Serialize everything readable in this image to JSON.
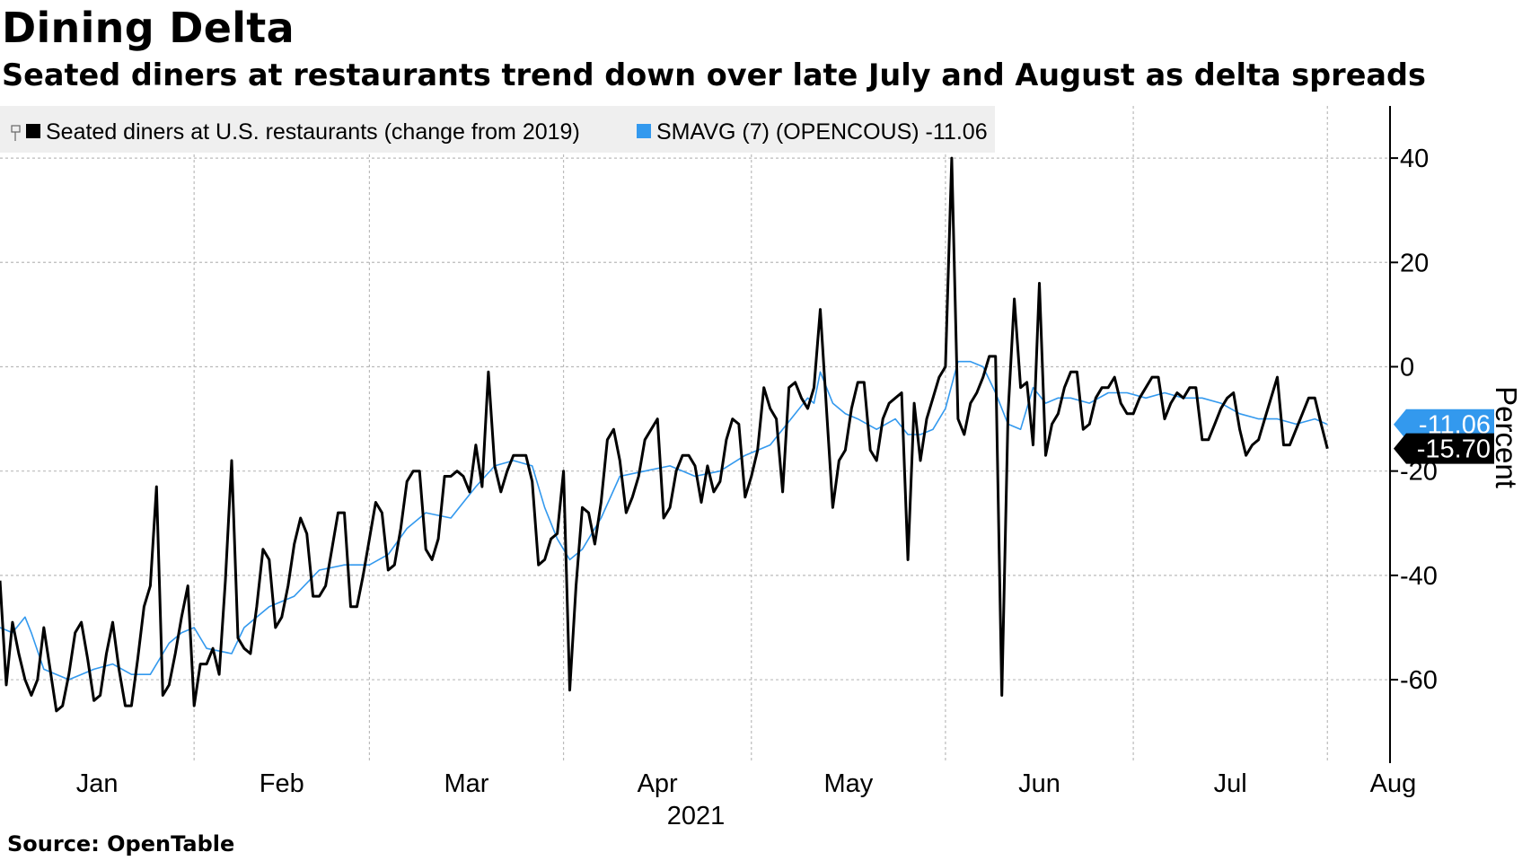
{
  "title": "Dining Delta",
  "subtitle": "Seated diners at restaurants trend down over late July and August as delta spreads",
  "source": "Source: OpenTable",
  "chart_data": {
    "type": "line",
    "title": "Dining Delta",
    "subtitle": "Seated diners at restaurants trend down over late July and August as delta spreads",
    "xlabel": "2021",
    "ylabel": "Percent",
    "ylim": [
      -76,
      50
    ],
    "y_ticks": [
      40,
      20,
      0,
      -20,
      -40,
      -60
    ],
    "y_tick_labels": [
      "40",
      "20",
      "0",
      "-20",
      "-40",
      "-60"
    ],
    "x_range_days": [
      1,
      223
    ],
    "month_ticks": [
      {
        "label": "Jan",
        "day": 1
      },
      {
        "label": "Feb",
        "day": 32
      },
      {
        "label": "Mar",
        "day": 60
      },
      {
        "label": "Apr",
        "day": 91
      },
      {
        "label": "May",
        "day": 121
      },
      {
        "label": "Jun",
        "day": 152
      },
      {
        "label": "Jul",
        "day": 182
      },
      {
        "label": "Aug",
        "day": 213
      }
    ],
    "grid": true,
    "legend_position": "top-left",
    "series": [
      {
        "name": "Seated diners at U.S. restaurants (change from 2019)",
        "color": "#000000",
        "last_value": "-15.70",
        "points": [
          [
            1,
            -41
          ],
          [
            2,
            -61
          ],
          [
            3,
            -49
          ],
          [
            4,
            -55
          ],
          [
            5,
            -60
          ],
          [
            6,
            -63
          ],
          [
            7,
            -60
          ],
          [
            8,
            -50
          ],
          [
            9,
            -58
          ],
          [
            10,
            -66
          ],
          [
            11,
            -65
          ],
          [
            12,
            -59
          ],
          [
            13,
            -51
          ],
          [
            14,
            -49
          ],
          [
            15,
            -56
          ],
          [
            16,
            -64
          ],
          [
            17,
            -63
          ],
          [
            18,
            -55
          ],
          [
            19,
            -49
          ],
          [
            20,
            -58
          ],
          [
            21,
            -65
          ],
          [
            22,
            -65
          ],
          [
            23,
            -56
          ],
          [
            24,
            -46
          ],
          [
            25,
            -42
          ],
          [
            26,
            -23
          ],
          [
            27,
            -63
          ],
          [
            28,
            -61
          ],
          [
            29,
            -55
          ],
          [
            30,
            -48
          ],
          [
            31,
            -42
          ],
          [
            32,
            -65
          ],
          [
            33,
            -57
          ],
          [
            34,
            -57
          ],
          [
            35,
            -54
          ],
          [
            36,
            -59
          ],
          [
            37,
            -41
          ],
          [
            38,
            -18
          ],
          [
            39,
            -52
          ],
          [
            40,
            -54
          ],
          [
            41,
            -55
          ],
          [
            42,
            -46
          ],
          [
            43,
            -35
          ],
          [
            44,
            -37
          ],
          [
            45,
            -50
          ],
          [
            46,
            -48
          ],
          [
            47,
            -42
          ],
          [
            48,
            -34
          ],
          [
            49,
            -29
          ],
          [
            50,
            -32
          ],
          [
            51,
            -44
          ],
          [
            52,
            -44
          ],
          [
            53,
            -42
          ],
          [
            54,
            -35
          ],
          [
            55,
            -28
          ],
          [
            56,
            -28
          ],
          [
            57,
            -46
          ],
          [
            58,
            -46
          ],
          [
            59,
            -40
          ],
          [
            60,
            -33
          ],
          [
            61,
            -26
          ],
          [
            62,
            -28
          ],
          [
            63,
            -39
          ],
          [
            64,
            -38
          ],
          [
            65,
            -31
          ],
          [
            66,
            -22
          ],
          [
            67,
            -20
          ],
          [
            68,
            -20
          ],
          [
            69,
            -35
          ],
          [
            70,
            -37
          ],
          [
            71,
            -33
          ],
          [
            72,
            -21
          ],
          [
            73,
            -21
          ],
          [
            74,
            -20
          ],
          [
            75,
            -21
          ],
          [
            76,
            -24
          ],
          [
            77,
            -15
          ],
          [
            78,
            -23
          ],
          [
            79,
            -1
          ],
          [
            80,
            -19
          ],
          [
            81,
            -24
          ],
          [
            82,
            -20
          ],
          [
            83,
            -17
          ],
          [
            84,
            -17
          ],
          [
            85,
            -17
          ],
          [
            86,
            -22
          ],
          [
            87,
            -38
          ],
          [
            88,
            -37
          ],
          [
            89,
            -33
          ],
          [
            90,
            -32
          ],
          [
            91,
            -20
          ],
          [
            92,
            -62
          ],
          [
            93,
            -42
          ],
          [
            94,
            -27
          ],
          [
            95,
            -28
          ],
          [
            96,
            -34
          ],
          [
            97,
            -26
          ],
          [
            98,
            -14
          ],
          [
            99,
            -12
          ],
          [
            100,
            -18
          ],
          [
            101,
            -28
          ],
          [
            102,
            -25
          ],
          [
            103,
            -21
          ],
          [
            104,
            -14
          ],
          [
            105,
            -12
          ],
          [
            106,
            -10
          ],
          [
            107,
            -29
          ],
          [
            108,
            -27
          ],
          [
            109,
            -20
          ],
          [
            110,
            -17
          ],
          [
            111,
            -17
          ],
          [
            112,
            -19
          ],
          [
            113,
            -26
          ],
          [
            114,
            -19
          ],
          [
            115,
            -24
          ],
          [
            116,
            -22
          ],
          [
            117,
            -14
          ],
          [
            118,
            -10
          ],
          [
            119,
            -11
          ],
          [
            120,
            -25
          ],
          [
            121,
            -21
          ],
          [
            122,
            -16
          ],
          [
            123,
            -4
          ],
          [
            124,
            -8
          ],
          [
            125,
            -10
          ],
          [
            126,
            -24
          ],
          [
            127,
            -4
          ],
          [
            128,
            -3
          ],
          [
            129,
            -6
          ],
          [
            130,
            -8
          ],
          [
            131,
            -4
          ],
          [
            132,
            11
          ],
          [
            133,
            -8
          ],
          [
            134,
            -27
          ],
          [
            135,
            -18
          ],
          [
            136,
            -16
          ],
          [
            137,
            -8
          ],
          [
            138,
            -3
          ],
          [
            139,
            -3
          ],
          [
            140,
            -16
          ],
          [
            141,
            -18
          ],
          [
            142,
            -10
          ],
          [
            143,
            -7
          ],
          [
            144,
            -6
          ],
          [
            145,
            -5
          ],
          [
            146,
            -37
          ],
          [
            147,
            -7
          ],
          [
            148,
            -18
          ],
          [
            149,
            -10
          ],
          [
            150,
            -6
          ],
          [
            151,
            -2
          ],
          [
            152,
            0
          ],
          [
            153,
            40
          ],
          [
            154,
            -10
          ],
          [
            155,
            -13
          ],
          [
            156,
            -7
          ],
          [
            157,
            -5
          ],
          [
            158,
            -2
          ],
          [
            159,
            2
          ],
          [
            160,
            2
          ],
          [
            161,
            -63
          ],
          [
            162,
            -9
          ],
          [
            163,
            13
          ],
          [
            164,
            -4
          ],
          [
            165,
            -3
          ],
          [
            166,
            -15
          ],
          [
            167,
            16
          ],
          [
            168,
            -17
          ],
          [
            169,
            -11
          ],
          [
            170,
            -9
          ],
          [
            171,
            -4
          ],
          [
            172,
            -1
          ],
          [
            173,
            -1
          ],
          [
            174,
            -12
          ],
          [
            175,
            -11
          ],
          [
            176,
            -6
          ],
          [
            177,
            -4
          ],
          [
            178,
            -4
          ],
          [
            179,
            -2
          ],
          [
            180,
            -7
          ],
          [
            181,
            -9
          ],
          [
            182,
            -9
          ],
          [
            183,
            -6
          ],
          [
            184,
            -4
          ],
          [
            185,
            -2
          ],
          [
            186,
            -2
          ],
          [
            187,
            -10
          ],
          [
            188,
            -7
          ],
          [
            189,
            -5
          ],
          [
            190,
            -6
          ],
          [
            191,
            -4
          ],
          [
            192,
            -4
          ],
          [
            193,
            -14
          ],
          [
            194,
            -14
          ],
          [
            195,
            -11
          ],
          [
            196,
            -8
          ],
          [
            197,
            -6
          ],
          [
            198,
            -5
          ],
          [
            199,
            -12
          ],
          [
            200,
            -17
          ],
          [
            201,
            -15
          ],
          [
            202,
            -14
          ],
          [
            203,
            -10
          ],
          [
            204,
            -6
          ],
          [
            205,
            -2
          ],
          [
            206,
            -15
          ],
          [
            207,
            -15
          ],
          [
            208,
            -12
          ],
          [
            209,
            -9
          ],
          [
            210,
            -6
          ],
          [
            211,
            -6
          ],
          [
            212,
            -11
          ],
          [
            213,
            -15.7
          ]
        ]
      },
      {
        "name": "SMAVG (7) (OPENCOUS) -11.06",
        "color": "#3399ee",
        "last_value": "-11.06",
        "points": [
          [
            1,
            -50
          ],
          [
            3,
            -51
          ],
          [
            5,
            -48
          ],
          [
            6,
            -51
          ],
          [
            8,
            -58
          ],
          [
            10,
            -59
          ],
          [
            12,
            -60
          ],
          [
            14,
            -59
          ],
          [
            16,
            -58
          ],
          [
            19,
            -57
          ],
          [
            22,
            -59
          ],
          [
            25,
            -59
          ],
          [
            28,
            -53
          ],
          [
            30,
            -51
          ],
          [
            32,
            -50
          ],
          [
            34,
            -54
          ],
          [
            38,
            -55
          ],
          [
            40,
            -50
          ],
          [
            44,
            -46
          ],
          [
            48,
            -44
          ],
          [
            52,
            -39
          ],
          [
            56,
            -38
          ],
          [
            60,
            -38
          ],
          [
            63,
            -36
          ],
          [
            66,
            -31
          ],
          [
            69,
            -28
          ],
          [
            73,
            -29
          ],
          [
            77,
            -23
          ],
          [
            80,
            -19
          ],
          [
            83,
            -18
          ],
          [
            86,
            -19
          ],
          [
            88,
            -27
          ],
          [
            90,
            -33
          ],
          [
            92,
            -37
          ],
          [
            94,
            -35
          ],
          [
            97,
            -29
          ],
          [
            100,
            -21
          ],
          [
            104,
            -20
          ],
          [
            108,
            -19
          ],
          [
            112,
            -21
          ],
          [
            116,
            -20
          ],
          [
            120,
            -17
          ],
          [
            124,
            -15
          ],
          [
            128,
            -9
          ],
          [
            130,
            -6
          ],
          [
            131,
            -7
          ],
          [
            132,
            -1
          ],
          [
            134,
            -7
          ],
          [
            136,
            -9
          ],
          [
            138,
            -10
          ],
          [
            141,
            -12
          ],
          [
            144,
            -10
          ],
          [
            146,
            -13
          ],
          [
            148,
            -13
          ],
          [
            150,
            -12
          ],
          [
            152,
            -8
          ],
          [
            154,
            1
          ],
          [
            156,
            1
          ],
          [
            158,
            0
          ],
          [
            160,
            -5
          ],
          [
            162,
            -11
          ],
          [
            164,
            -12
          ],
          [
            166,
            -4
          ],
          [
            168,
            -7
          ],
          [
            170,
            -6
          ],
          [
            172,
            -6
          ],
          [
            175,
            -7
          ],
          [
            178,
            -5
          ],
          [
            181,
            -5
          ],
          [
            184,
            -6
          ],
          [
            187,
            -5
          ],
          [
            190,
            -6
          ],
          [
            193,
            -6
          ],
          [
            196,
            -7
          ],
          [
            199,
            -9
          ],
          [
            202,
            -10
          ],
          [
            205,
            -10
          ],
          [
            208,
            -11
          ],
          [
            211,
            -10
          ],
          [
            213,
            -11.06
          ]
        ]
      }
    ]
  },
  "legend": {
    "item1_label": "Seated diners at U.S. restaurants (change from 2019)",
    "item2_label": "SMAVG (7) (OPENCOUS) -11.06"
  },
  "colors": {
    "series1": "#000000",
    "series2": "#3399ee",
    "grid": "#bbbbbb",
    "legend_bg": "#efefef"
  }
}
